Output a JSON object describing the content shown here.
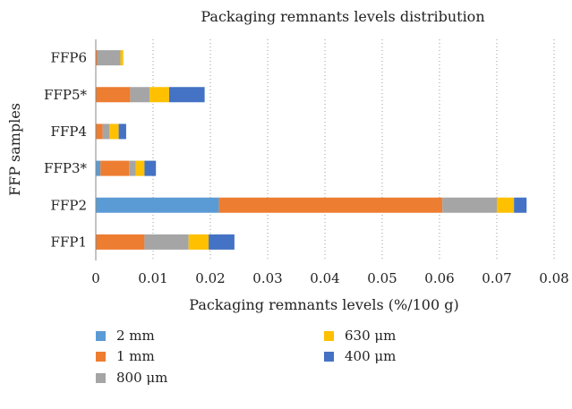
{
  "chart_data": {
    "type": "bar",
    "orientation": "horizontal",
    "stacked": true,
    "title": "Packaging remnants levels distribution",
    "xlabel": "Packaging remnants levels (%/100 g)",
    "ylabel": "FFP samples",
    "xlim": [
      0,
      0.08
    ],
    "x_ticks": [
      "0",
      "0.01",
      "0.02",
      "0.03",
      "0.04",
      "0.05",
      "0.06",
      "0.07",
      "0.08"
    ],
    "x_tick_values": [
      0,
      0.01,
      0.02,
      0.03,
      0.04,
      0.05,
      0.06,
      0.07,
      0.08
    ],
    "grid": "vertical dotted",
    "legend_position": "bottom",
    "categories": [
      "FFP1",
      "FFP2",
      "FFP3*",
      "FFP4",
      "FFP5*",
      "FFP6"
    ],
    "series": [
      {
        "name": "2 mm",
        "color": "#5b9bd5",
        "values": [
          0,
          0.0215,
          0.0008,
          0,
          0,
          0
        ]
      },
      {
        "name": "1 mm",
        "color": "#ed7d31",
        "values": [
          0.0085,
          0.039,
          0.005,
          0.0012,
          0.006,
          0.0003
        ]
      },
      {
        "name": "800 μm",
        "color": "#a5a5a5",
        "values": [
          0.0077,
          0.0095,
          0.0012,
          0.0012,
          0.0034,
          0.004
        ]
      },
      {
        "name": "630 μm",
        "color": "#ffc000",
        "values": [
          0.0035,
          0.003,
          0.0015,
          0.0016,
          0.0034,
          0.0005
        ]
      },
      {
        "name": "400 μm",
        "color": "#4472c4",
        "values": [
          0.0045,
          0.0022,
          0.002,
          0.0013,
          0.0062,
          0
        ]
      }
    ]
  }
}
